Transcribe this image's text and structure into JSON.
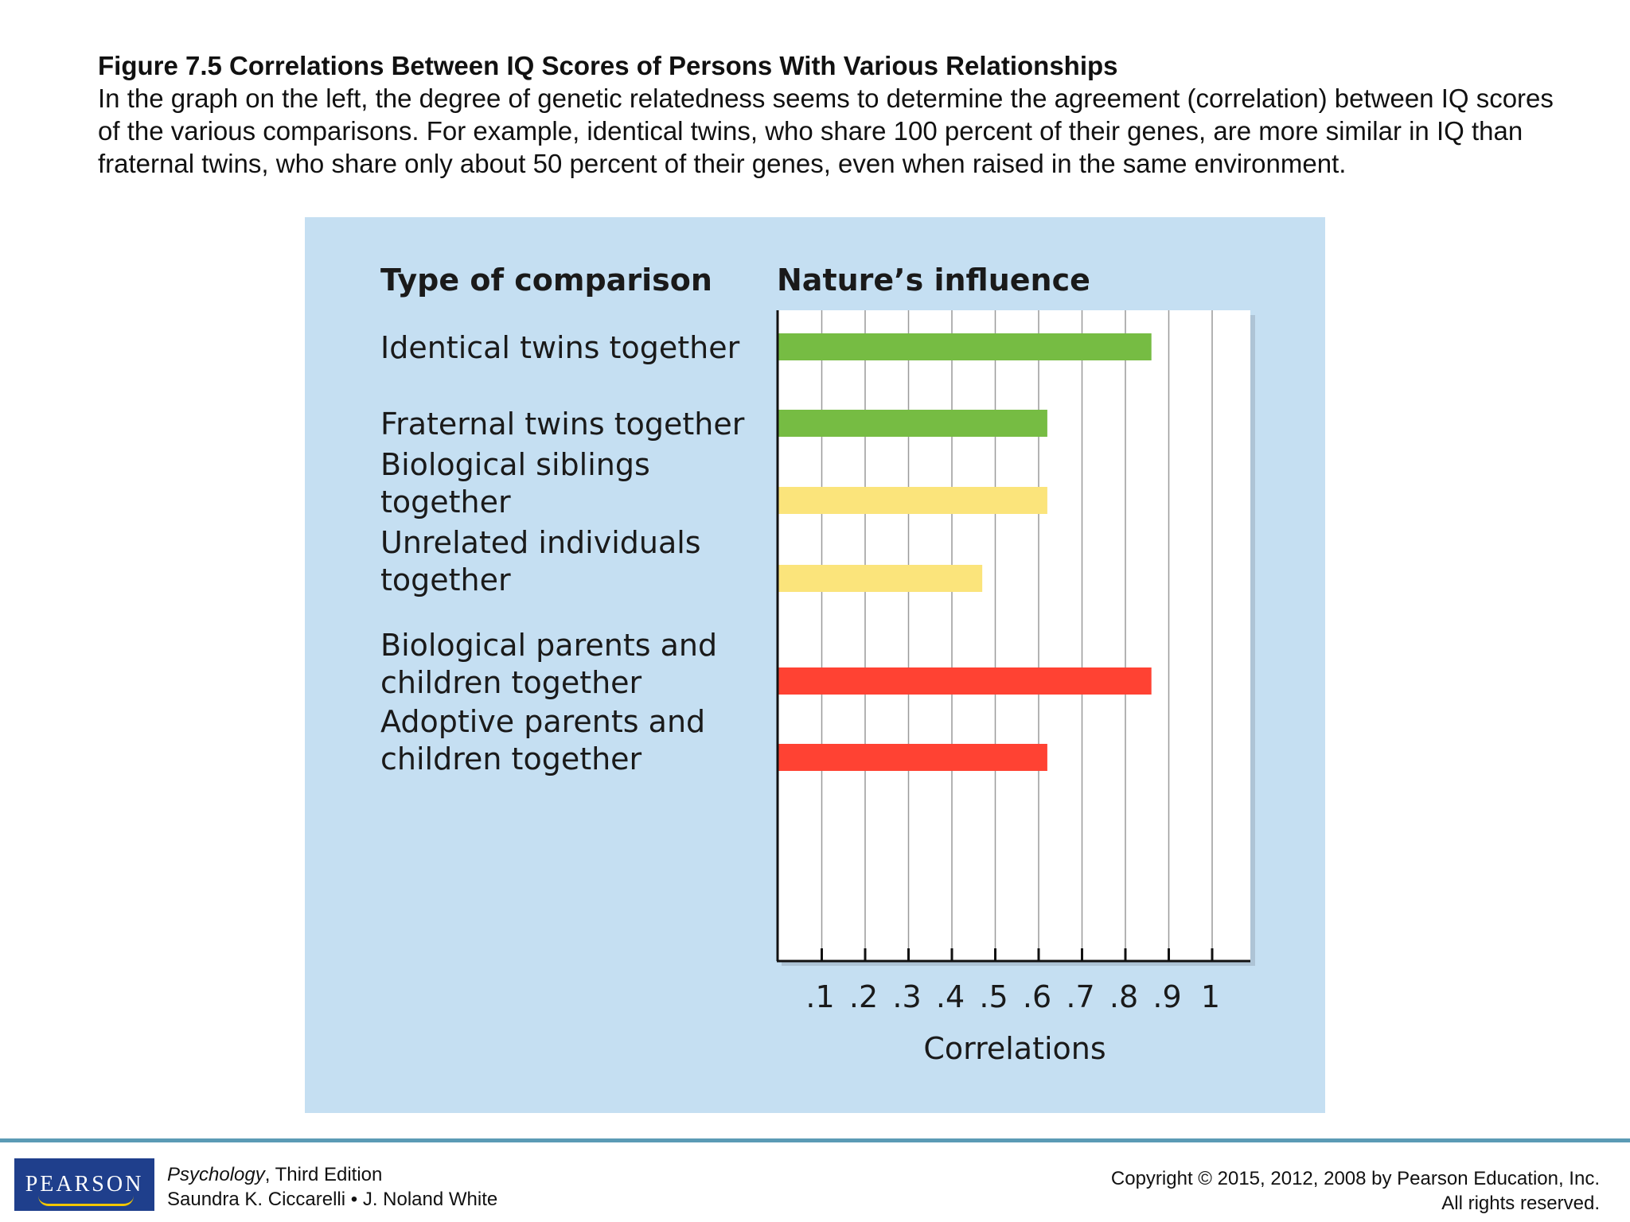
{
  "caption": {
    "title": "Figure 7.5 Correlations Between IQ Scores of Persons With Various Relationships",
    "body": "In the graph on the left, the degree of genetic relatedness seems to determine the agreement (correlation) between IQ scores of the various comparisons. For example, identical twins, who share 100 percent of their genes, are more similar in IQ than fraternal twins, who share only about 50 percent of their genes, even when raised in the same environment."
  },
  "chart_data": {
    "type": "bar",
    "orientation": "horizontal",
    "category_header": "Type of comparison",
    "value_header": "Nature’s influence",
    "xlabel": "Correlations",
    "xlim": [
      0,
      1.1
    ],
    "xticks": [
      0.1,
      0.2,
      0.3,
      0.4,
      0.5,
      0.6,
      0.7,
      0.8,
      0.9,
      1.0
    ],
    "xtick_labels": [
      ".1",
      ".2",
      ".3",
      ".4",
      ".5",
      ".6",
      ".7",
      ".8",
      ".9",
      "1"
    ],
    "grid": true,
    "bars": [
      {
        "label_lines": [
          "Identical twins together"
        ],
        "value": 0.86,
        "color": "#76bc43"
      },
      {
        "label_lines": [
          "Fraternal twins together"
        ],
        "value": 0.62,
        "color": "#76bc43"
      },
      {
        "label_lines": [
          "Biological siblings",
          "together"
        ],
        "value": 0.62,
        "color": "#fbe47b"
      },
      {
        "label_lines": [
          "Unrelated individuals",
          "together"
        ],
        "value": 0.47,
        "color": "#fbe47b"
      },
      {
        "label_lines": [
          "Biological parents and",
          "children together"
        ],
        "value": 0.86,
        "color": "#ff4233"
      },
      {
        "label_lines": [
          "Adoptive parents and",
          "children together"
        ],
        "value": 0.62,
        "color": "#ff4233"
      }
    ]
  },
  "footer": {
    "logo_text": "PEARSON",
    "book_title": "Psychology",
    "book_edition": ", Third Edition",
    "authors": "Saundra K. Ciccarelli • J. Noland White",
    "copyright_line1": "Copyright © 2015, 2012, 2008 by Pearson Education, Inc.",
    "copyright_line2": "All rights reserved."
  }
}
